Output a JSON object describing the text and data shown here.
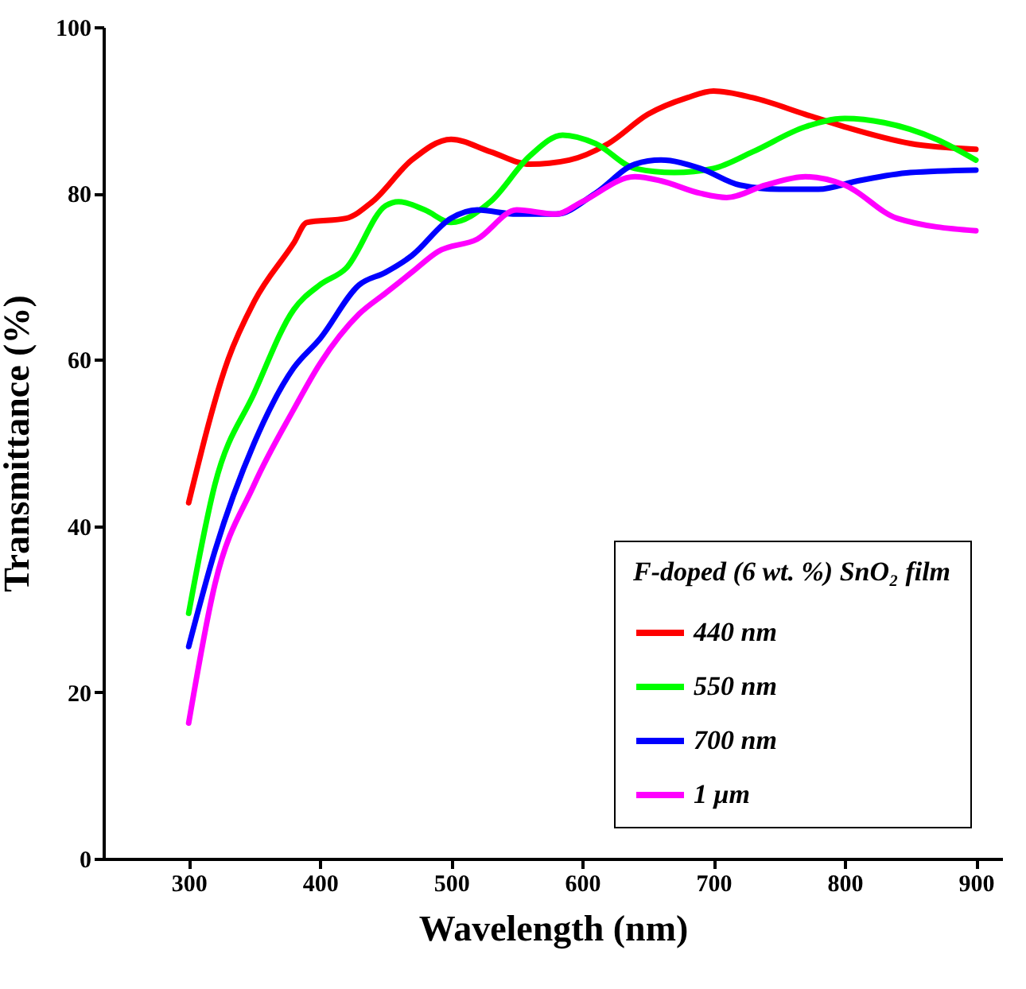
{
  "chart_data": {
    "type": "line",
    "xlabel": "Wavelength (nm)",
    "ylabel": "Transmittance (%)",
    "legend_title": "F-doped (6 wt. %) SnO₂ film",
    "legend": "bottom right",
    "grid": false,
    "marker": "none",
    "line_style": "solid",
    "xlim": [
      235,
      920
    ],
    "xticks": [
      300,
      400,
      500,
      600,
      700,
      800,
      900
    ],
    "ylim": [
      0,
      100
    ],
    "yticks": [
      0,
      20,
      40,
      60,
      80,
      100
    ],
    "series": [
      {
        "name": "440 nm",
        "color": "#ff0000",
        "x": [
          300,
          330,
          350,
          380,
          390,
          420,
          440,
          470,
          500,
          530,
          560,
          590,
          620,
          650,
          680,
          700,
          730,
          770,
          800,
          850,
          900
        ],
        "values": [
          42.8,
          60,
          67,
          74,
          76.5,
          77,
          79,
          84,
          86.5,
          85,
          83.5,
          84,
          86,
          89.5,
          91.5,
          92.3,
          91.5,
          89.5,
          88,
          86,
          85.3
        ]
      },
      {
        "name": "550 nm",
        "color": "#00ff00",
        "x": [
          300,
          320,
          350,
          380,
          400,
          420,
          450,
          460,
          480,
          500,
          530,
          560,
          585,
          610,
          640,
          670,
          700,
          730,
          770,
          800,
          830,
          870,
          900
        ],
        "values": [
          29.5,
          45,
          56,
          66,
          69,
          71,
          78.5,
          79,
          78,
          76.5,
          79,
          84.5,
          87,
          86,
          83,
          82.5,
          83,
          85,
          88,
          89,
          88.5,
          86.5,
          84
        ]
      },
      {
        "name": "700 nm",
        "color": "#0000ff",
        "x": [
          300,
          320,
          350,
          380,
          400,
          430,
          450,
          470,
          500,
          520,
          550,
          580,
          610,
          640,
          660,
          690,
          720,
          750,
          780,
          810,
          850,
          900
        ],
        "values": [
          25.5,
          37,
          50,
          59,
          62.5,
          69,
          70.5,
          72.5,
          77,
          78,
          77.5,
          77.5,
          80,
          83.5,
          84,
          83,
          81,
          80.5,
          80.5,
          81.5,
          82.5,
          82.8
        ]
      },
      {
        "name": "1 μm",
        "color": "#ff00ff",
        "x": [
          300,
          320,
          350,
          380,
          400,
          430,
          450,
          470,
          490,
          520,
          550,
          580,
          600,
          640,
          660,
          690,
          710,
          740,
          770,
          800,
          840,
          900
        ],
        "values": [
          16.3,
          33,
          45,
          54,
          59.5,
          65.5,
          68,
          70.5,
          73,
          74.5,
          78,
          77.5,
          79,
          82,
          81.5,
          80,
          79.5,
          81,
          82,
          81,
          77,
          75.5
        ]
      }
    ]
  }
}
